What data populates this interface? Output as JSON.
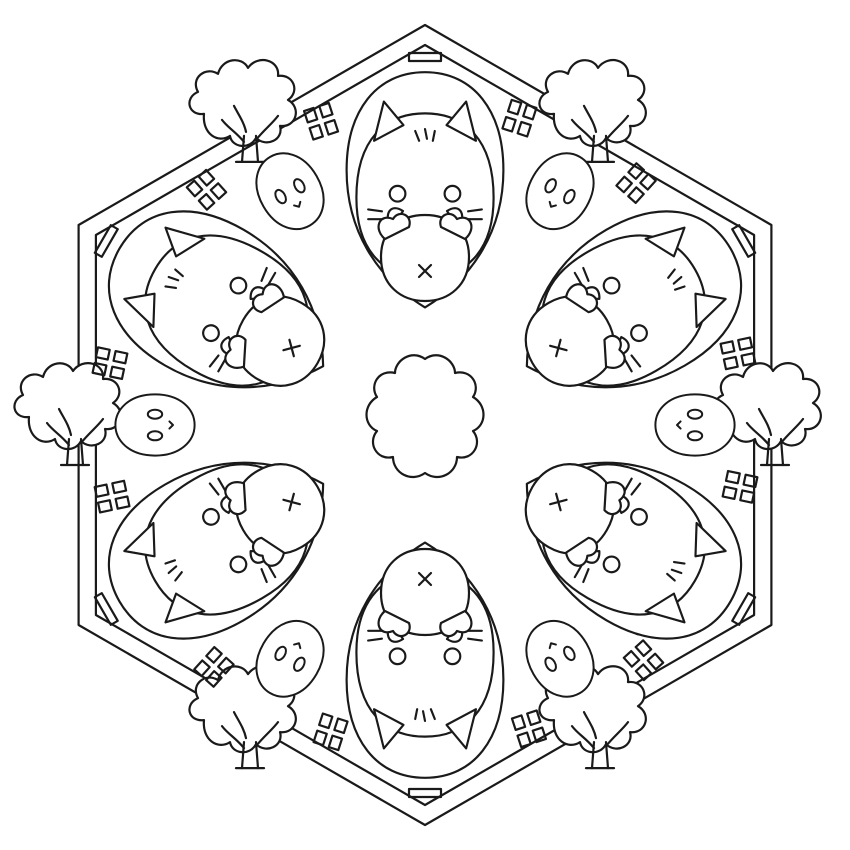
{
  "image": {
    "kind": "coloring-page mandala",
    "motif_name": "cat mandala",
    "symmetry": 6,
    "colors": {
      "background": "#ffffff",
      "line": "#1a1a1a"
    }
  }
}
